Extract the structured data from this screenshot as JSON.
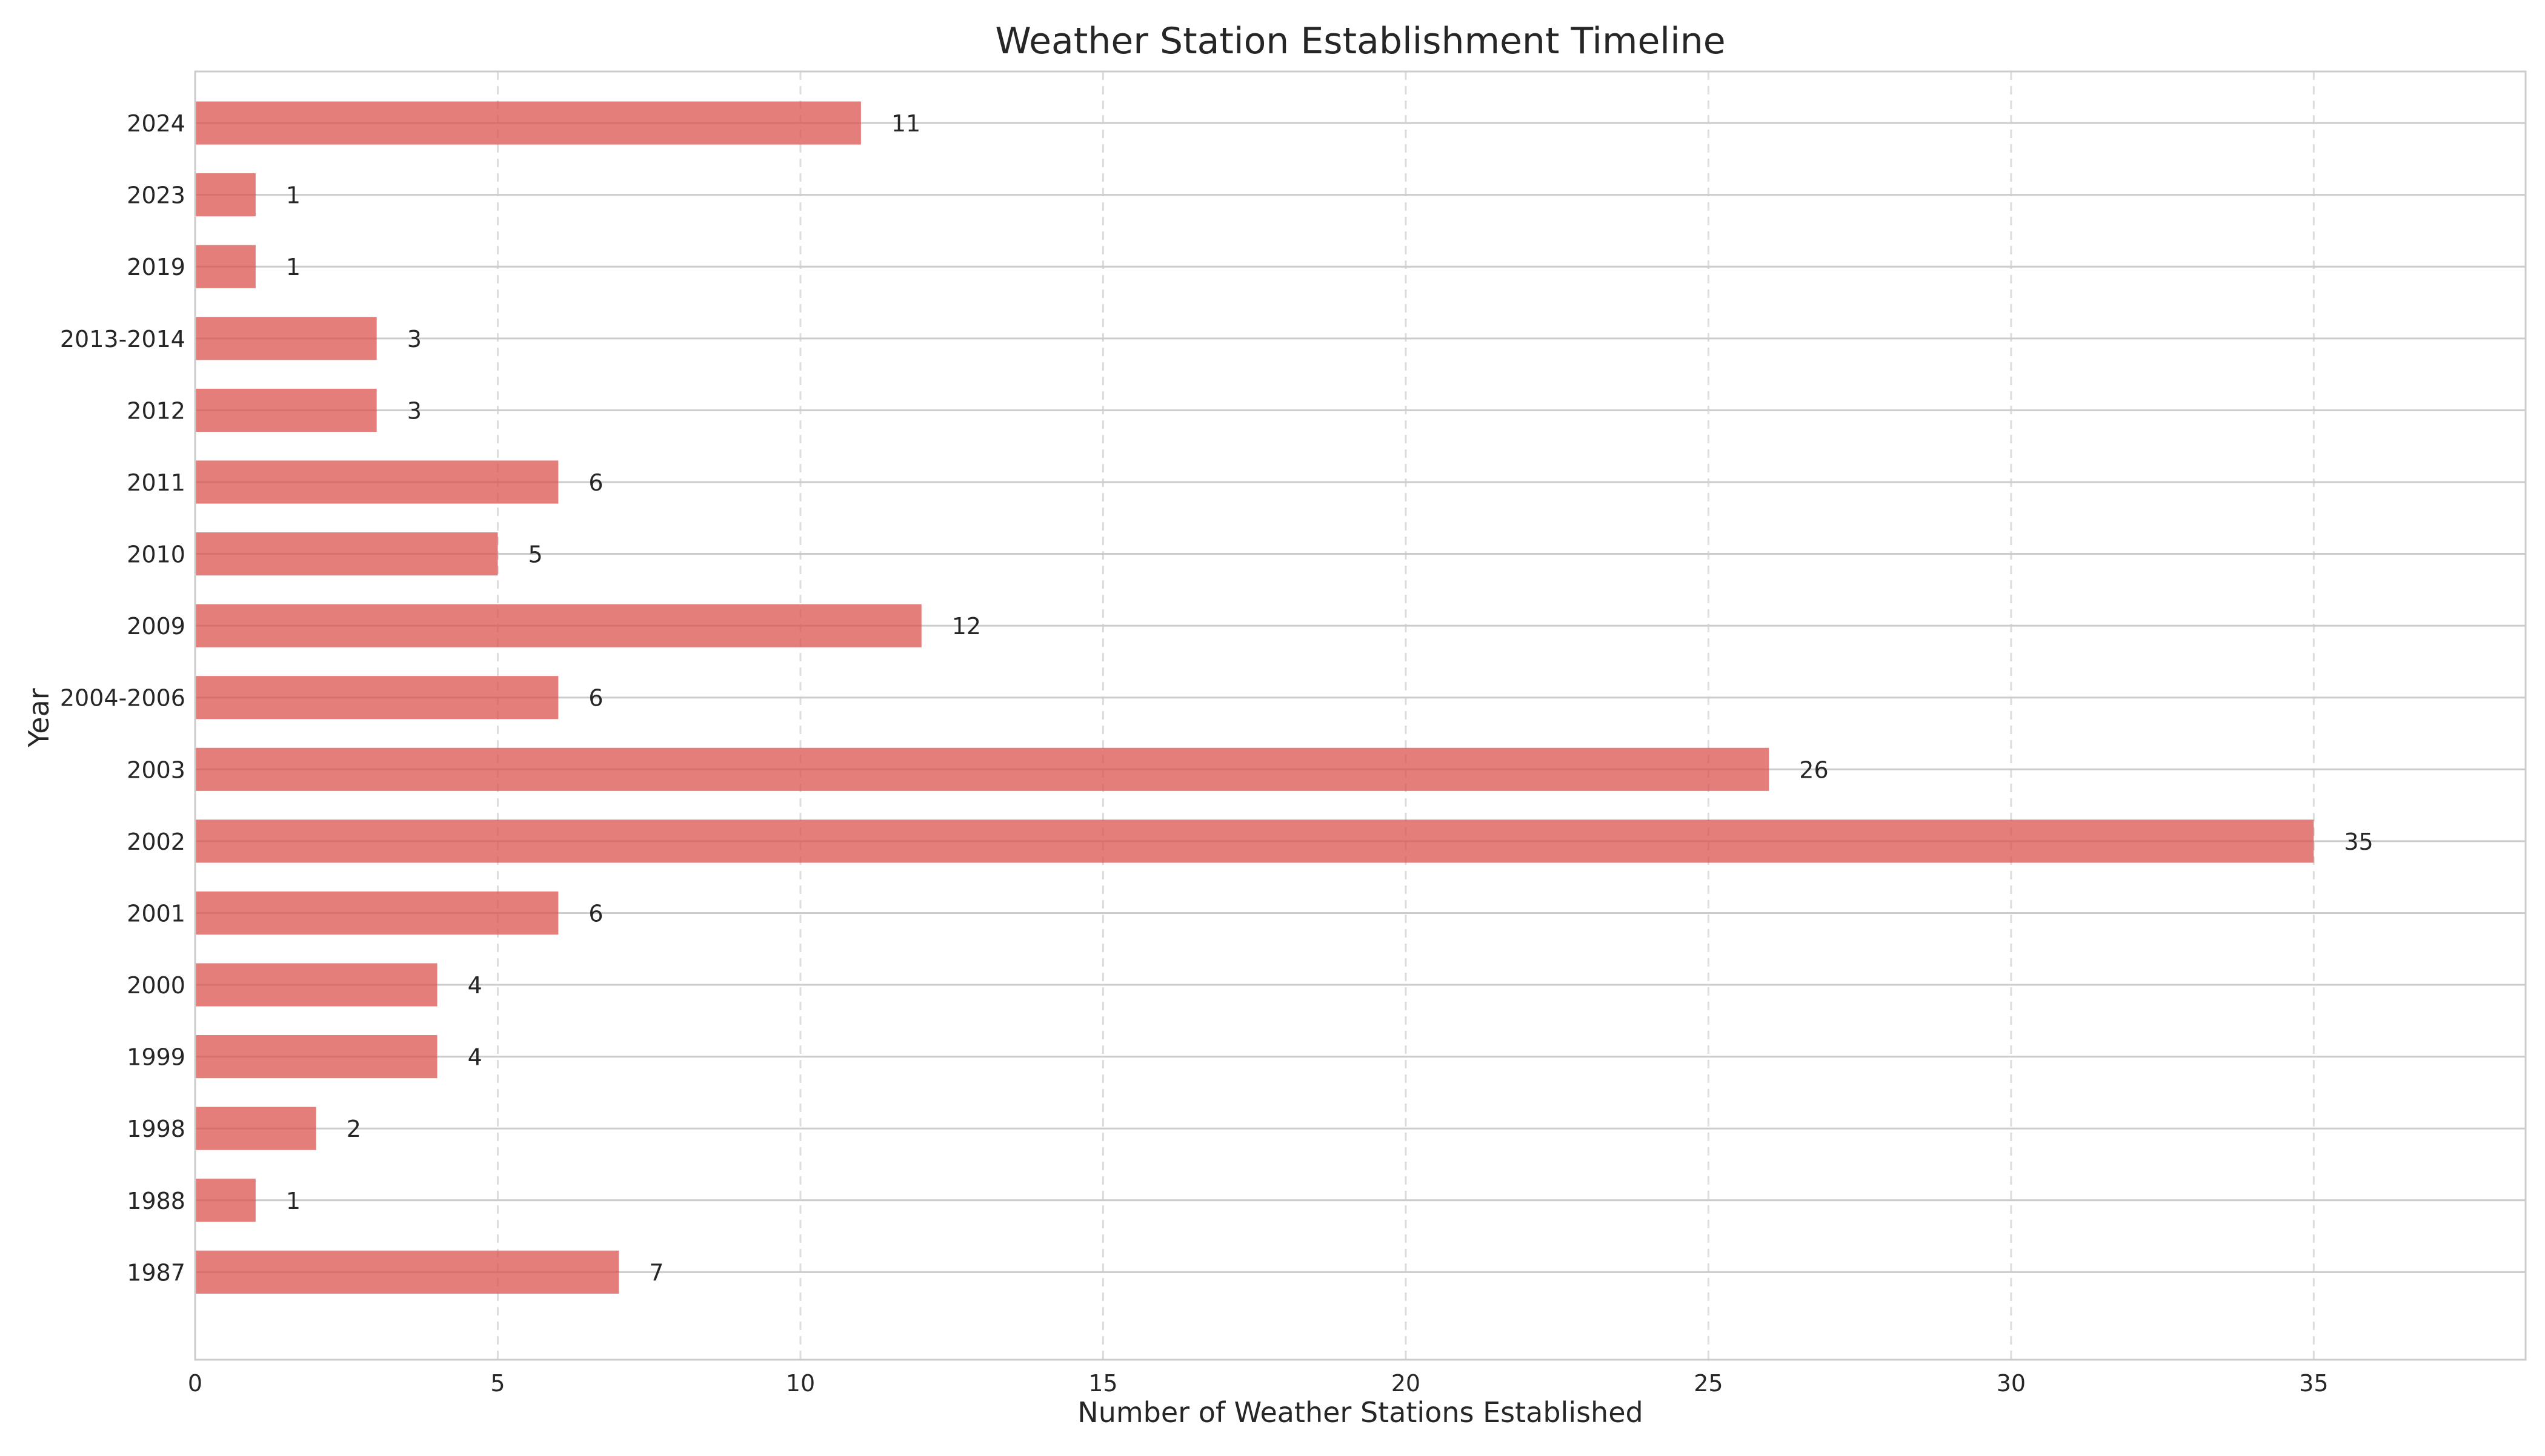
{
  "chart_data": {
    "type": "bar",
    "orientation": "horizontal",
    "title": "Weather Station Establishment Timeline",
    "xlabel": "Number of Weather Stations Established",
    "ylabel": "Year",
    "categories": [
      "1987",
      "1988",
      "1998",
      "1999",
      "2000",
      "2001",
      "2002",
      "2003",
      "2004-2006",
      "2009",
      "2010",
      "2011",
      "2012",
      "2013-2014",
      "2019",
      "2023",
      "2024"
    ],
    "values": [
      7,
      1,
      2,
      4,
      4,
      6,
      35,
      26,
      6,
      12,
      5,
      6,
      3,
      3,
      1,
      1,
      11
    ],
    "xlim": [
      0,
      38.5
    ],
    "xticks": [
      0,
      5,
      10,
      15,
      20,
      25,
      30,
      35
    ],
    "grid": {
      "x": true,
      "y": true,
      "x_style": "dashed"
    },
    "bar_color": "#d9534f",
    "bar_opacity": 0.75,
    "data_labels": true,
    "legend": "none"
  }
}
